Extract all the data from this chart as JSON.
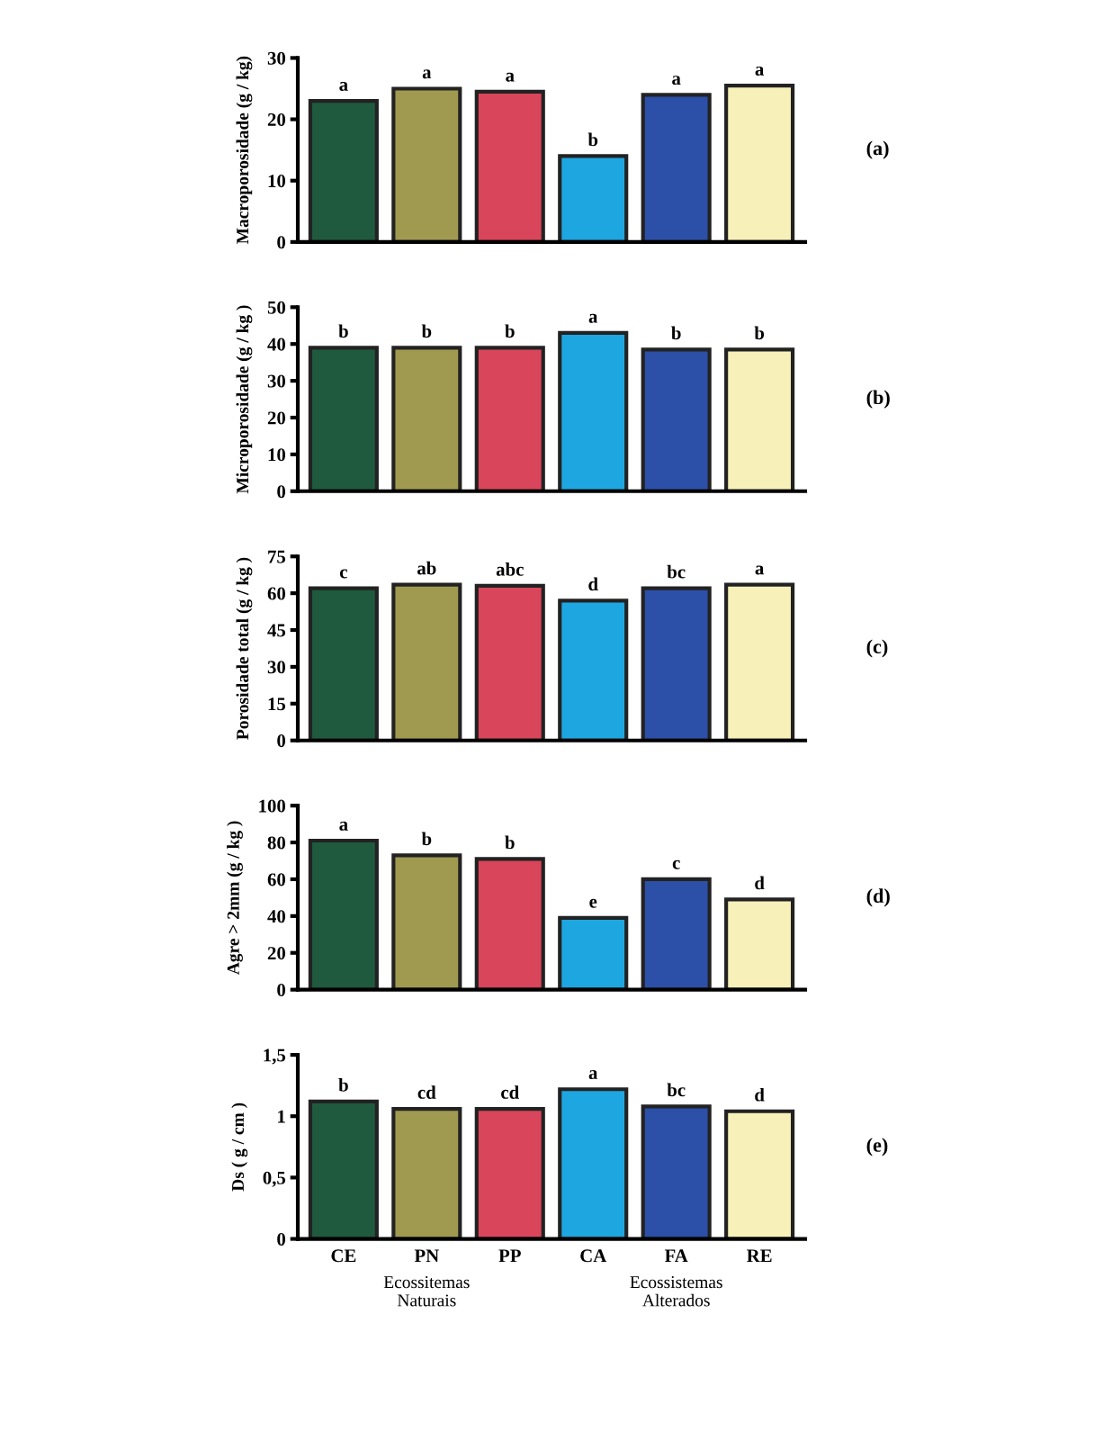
{
  "chart_data": [
    {
      "type": "bar",
      "ylabel": "Macroporosidade (g / kg)",
      "categories": [
        null,
        null,
        null,
        null,
        null,
        null
      ],
      "values": [
        23,
        25,
        24.5,
        14,
        24,
        25.5
      ],
      "colors": [
        "#1f5a3e",
        "#a09a50",
        "#d9455a",
        "#1ea6e0",
        "#2c4fa8",
        "#f7f0b8"
      ],
      "value_labels": [
        "a",
        "a",
        "a",
        "b",
        "a",
        "a"
      ],
      "ylim": [
        0,
        30
      ],
      "yticks": [
        0,
        10,
        20,
        30
      ],
      "grid": false,
      "annotations": [
        "(a)"
      ]
    },
    {
      "type": "bar",
      "ylabel": "Microporosidade (g / kg )",
      "categories": [
        null,
        null,
        null,
        null,
        null,
        null
      ],
      "values": [
        39,
        39,
        39,
        43,
        38.5,
        38.5
      ],
      "colors": [
        "#1f5a3e",
        "#a09a50",
        "#d9455a",
        "#1ea6e0",
        "#2c4fa8",
        "#f7f0b8"
      ],
      "value_labels": [
        "b",
        "b",
        "b",
        "a",
        "b",
        "b"
      ],
      "ylim": [
        0,
        50
      ],
      "yticks": [
        0,
        10,
        20,
        30,
        40,
        50
      ],
      "grid": false,
      "annotations": [
        "(b)"
      ]
    },
    {
      "type": "bar",
      "ylabel": "Porosidade total (g / kg )",
      "categories": [
        null,
        null,
        null,
        null,
        null,
        null
      ],
      "values": [
        62,
        63.5,
        63,
        57,
        62,
        63.5
      ],
      "colors": [
        "#1f5a3e",
        "#a09a50",
        "#d9455a",
        "#1ea6e0",
        "#2c4fa8",
        "#f7f0b8"
      ],
      "value_labels": [
        "c",
        "ab",
        "abc",
        "d",
        "bc",
        "a"
      ],
      "ylim": [
        0,
        75
      ],
      "yticks": [
        0,
        15,
        30,
        45,
        60,
        75
      ],
      "grid": false,
      "annotations": [
        "(c)"
      ]
    },
    {
      "type": "bar",
      "ylabel": "Agre > 2mm (g / kg )",
      "categories": [
        null,
        null,
        null,
        null,
        null,
        null
      ],
      "values": [
        81,
        73,
        71,
        39,
        60,
        49
      ],
      "colors": [
        "#1f5a3e",
        "#a09a50",
        "#d9455a",
        "#1ea6e0",
        "#2c4fa8",
        "#f7f0b8"
      ],
      "value_labels": [
        "a",
        "b",
        "b",
        "e",
        "c",
        "d"
      ],
      "ylim": [
        0,
        100
      ],
      "yticks": [
        0,
        20,
        40,
        60,
        80,
        100
      ],
      "grid": false,
      "annotations": [
        "(d)"
      ]
    },
    {
      "type": "bar",
      "ylabel": "Ds ( g / cm )",
      "categories": [
        "CE",
        "PN",
        "PP",
        "CA",
        "FA",
        "RE"
      ],
      "values": [
        1.12,
        1.06,
        1.06,
        1.22,
        1.08,
        1.04
      ],
      "colors": [
        "#1f5a3e",
        "#a09a50",
        "#d9455a",
        "#1ea6e0",
        "#2c4fa8",
        "#f7f0b8"
      ],
      "value_labels": [
        "b",
        "cd",
        "cd",
        "a",
        "bc",
        "d"
      ],
      "ylim": [
        0,
        1.5
      ],
      "yticks": [
        0,
        {
          "value": 0.5,
          "label": "0,5"
        },
        1,
        {
          "value": 1.5,
          "label": "1,5"
        }
      ],
      "grid": false,
      "annotations": [
        "(e)",
        "Ecossitemas\nNaturais",
        "Ecossistemas\nAlterados"
      ]
    }
  ]
}
